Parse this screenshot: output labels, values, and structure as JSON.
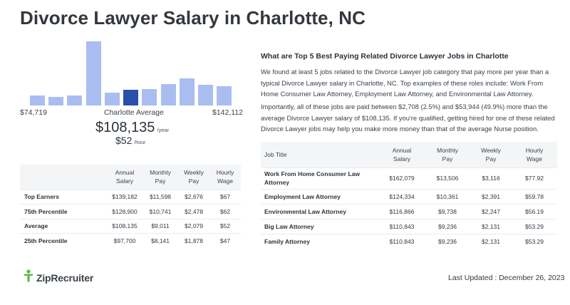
{
  "title": "Divorce Lawyer Salary in Charlotte, NC",
  "histogram": {
    "bars": [
      0.15,
      0.13,
      0.15,
      1.0,
      0.2,
      0.24,
      0.26,
      0.33,
      0.42,
      0.32,
      0.3
    ],
    "highlight_index": 5,
    "colors": {
      "bar": "#a9bdf0",
      "highlight": "#2a4eac"
    },
    "min_label": "$74,719",
    "max_label": "$142,112",
    "average_label": "Charlotte Average"
  },
  "salary": {
    "annual": "$108,135",
    "annual_unit": "/year",
    "hourly": "$52",
    "hourly_unit": "/hour"
  },
  "percentile_table": {
    "headers": [
      "",
      "Annual Salary",
      "Monthly Pay",
      "Weekly Pay",
      "Hourly Wage"
    ],
    "rows": [
      [
        "Top Earners",
        "$139,182",
        "$11,598",
        "$2,676",
        "$67"
      ],
      [
        "75th Percentile",
        "$128,900",
        "$10,741",
        "$2,478",
        "$62"
      ],
      [
        "Average",
        "$108,135",
        "$9,011",
        "$2,079",
        "$52"
      ],
      [
        "25th Percentile",
        "$97,700",
        "$8,141",
        "$1,878",
        "$47"
      ]
    ]
  },
  "jobs": {
    "heading": "What are Top 5 Best Paying Related Divorce Lawyer Jobs in Charlotte",
    "paragraph1": "We found at least 5 jobs related to the Divorce Lawyer job category that pay more per year than a typical Divorce Lawyer salary in Charlotte, NC. Top examples of these roles include: Work From Home Consumer Law Attorney, Employment Law Attorney, and Environmental Law Attorney.",
    "paragraph2": "Importantly, all of these jobs are paid between $2,708 (2.5%) and $53,944 (49.9%) more than the average Divorce Lawyer salary of $108,135. If you're qualified, getting hired for one of these related Divorce Lawyer jobs may help you make more money than that of the average Nurse position.",
    "headers": [
      "Job Title",
      "Annual Salary",
      "Monthly Pay",
      "Weekly Pay",
      "Hourly Wage"
    ],
    "rows": [
      [
        "Work From Home Consumer Law Attorney",
        "$162,079",
        "$13,506",
        "$3,116",
        "$77.92"
      ],
      [
        "Employment Law Attorney",
        "$124,334",
        "$10,361",
        "$2,391",
        "$59.78"
      ],
      [
        "Environmental Law Attorney",
        "$116,866",
        "$9,738",
        "$2,247",
        "$56.19"
      ],
      [
        "Big Law Attorney",
        "$110,843",
        "$9,236",
        "$2,131",
        "$53.29"
      ],
      [
        "Family Attorney",
        "$110,843",
        "$9,236",
        "$2,131",
        "$53.29"
      ]
    ]
  },
  "footer": {
    "logo_text": "ZipRecruiter",
    "logo_icon": "ziprecruiter-person-icon",
    "brand_color": "#5bb94a",
    "updated": "Last Updated : December 26, 2023"
  }
}
